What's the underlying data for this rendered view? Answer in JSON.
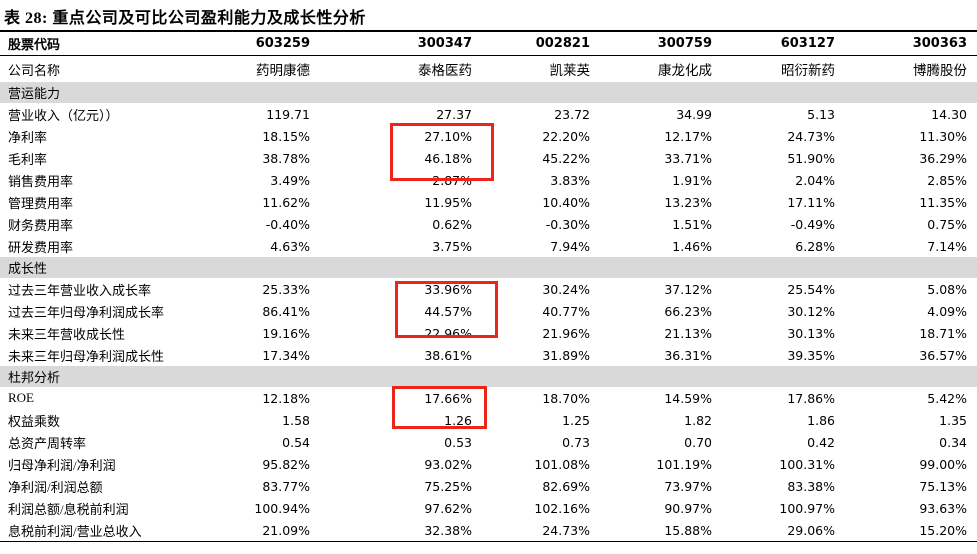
{
  "title": "表 28: 重点公司及可比公司盈利能力及成长性分析",
  "colors": {
    "highlight_red": "#ed241c",
    "section_band_gray": "#d9d9d9",
    "text": "#000000"
  },
  "table": {
    "code_row": {
      "label": "股票代码",
      "values": [
        "603259",
        "300347",
        "002821",
        "300759",
        "603127",
        "300363"
      ]
    },
    "name_row": {
      "label": "公司名称",
      "values": [
        "药明康德",
        "泰格医药",
        "凯莱英",
        "康龙化成",
        "昭衍新药",
        "博腾股份"
      ]
    },
    "sections": [
      {
        "header": "营运能力",
        "rows": [
          {
            "label": "营业收入（亿元））",
            "values": [
              "119.71",
              "27.37",
              "23.72",
              "34.99",
              "5.13",
              "14.30"
            ]
          },
          {
            "label": "净利率",
            "values": [
              "18.15%",
              "27.10%",
              "22.20%",
              "12.17%",
              "24.73%",
              "11.30%"
            ]
          },
          {
            "label": "毛利率",
            "values": [
              "38.78%",
              "46.18%",
              "45.22%",
              "33.71%",
              "51.90%",
              "36.29%"
            ]
          },
          {
            "label": "销售费用率",
            "values": [
              "3.49%",
              "2.87%",
              "3.83%",
              "1.91%",
              "2.04%",
              "2.85%"
            ]
          },
          {
            "label": "管理费用率",
            "values": [
              "11.62%",
              "11.95%",
              "10.40%",
              "13.23%",
              "17.11%",
              "11.35%"
            ]
          },
          {
            "label": "财务费用率",
            "values": [
              "-0.40%",
              "0.62%",
              "-0.30%",
              "1.51%",
              "-0.49%",
              "0.75%"
            ]
          },
          {
            "label": "研发费用率",
            "values": [
              "4.63%",
              "3.75%",
              "7.94%",
              "1.46%",
              "6.28%",
              "7.14%"
            ]
          }
        ]
      },
      {
        "header": "成长性",
        "rows": [
          {
            "label": "过去三年营业收入成长率",
            "values": [
              "25.33%",
              "33.96%",
              "30.24%",
              "37.12%",
              "25.54%",
              "5.08%"
            ]
          },
          {
            "label": "过去三年归母净利润成长率",
            "values": [
              "86.41%",
              "44.57%",
              "40.77%",
              "66.23%",
              "30.12%",
              "4.09%"
            ]
          },
          {
            "label": "未来三年营收成长性",
            "values": [
              "19.16%",
              "22.96%",
              "21.96%",
              "21.13%",
              "30.13%",
              "18.71%"
            ]
          },
          {
            "label": "未来三年归母净利润成长性",
            "values": [
              "17.34%",
              "38.61%",
              "31.89%",
              "36.31%",
              "39.35%",
              "36.57%"
            ]
          }
        ]
      },
      {
        "header": "杜邦分析",
        "rows": [
          {
            "label": "ROE",
            "values": [
              "12.18%",
              "17.66%",
              "18.70%",
              "14.59%",
              "17.86%",
              "5.42%"
            ]
          },
          {
            "label": "权益乘数",
            "values": [
              "1.58",
              "1.26",
              "1.25",
              "1.82",
              "1.86",
              "1.35"
            ]
          },
          {
            "label": "总资产周转率",
            "values": [
              "0.54",
              "0.53",
              "0.73",
              "0.70",
              "0.42",
              "0.34"
            ]
          },
          {
            "label": "归母净利润/净利润",
            "values": [
              "95.82%",
              "93.02%",
              "101.08%",
              "101.19%",
              "100.31%",
              "99.00%"
            ]
          },
          {
            "label": "净利润/利润总额",
            "values": [
              "83.77%",
              "75.25%",
              "82.69%",
              "73.97%",
              "83.38%",
              "75.13%"
            ]
          },
          {
            "label": "利润总额/息税前利润",
            "values": [
              "100.94%",
              "97.62%",
              "102.16%",
              "90.97%",
              "100.97%",
              "93.63%"
            ]
          },
          {
            "label": "息税前利润/营业总收入",
            "values": [
              "21.09%",
              "32.38%",
              "24.73%",
              "15.88%",
              "29.06%",
              "15.20%"
            ]
          }
        ]
      }
    ]
  },
  "highlights": [
    {
      "company": "泰格医药",
      "rows": [
        "净利率",
        "毛利率"
      ],
      "values": [
        "27.10%",
        "46.18%"
      ]
    },
    {
      "company": "泰格医药",
      "rows": [
        "过去三年营业收入成长率",
        "过去三年归母净利润成长率"
      ],
      "values": [
        "33.96%",
        "44.57%"
      ]
    },
    {
      "company": "泰格医药",
      "rows": [
        "ROE"
      ],
      "values": [
        "17.66%"
      ]
    }
  ]
}
